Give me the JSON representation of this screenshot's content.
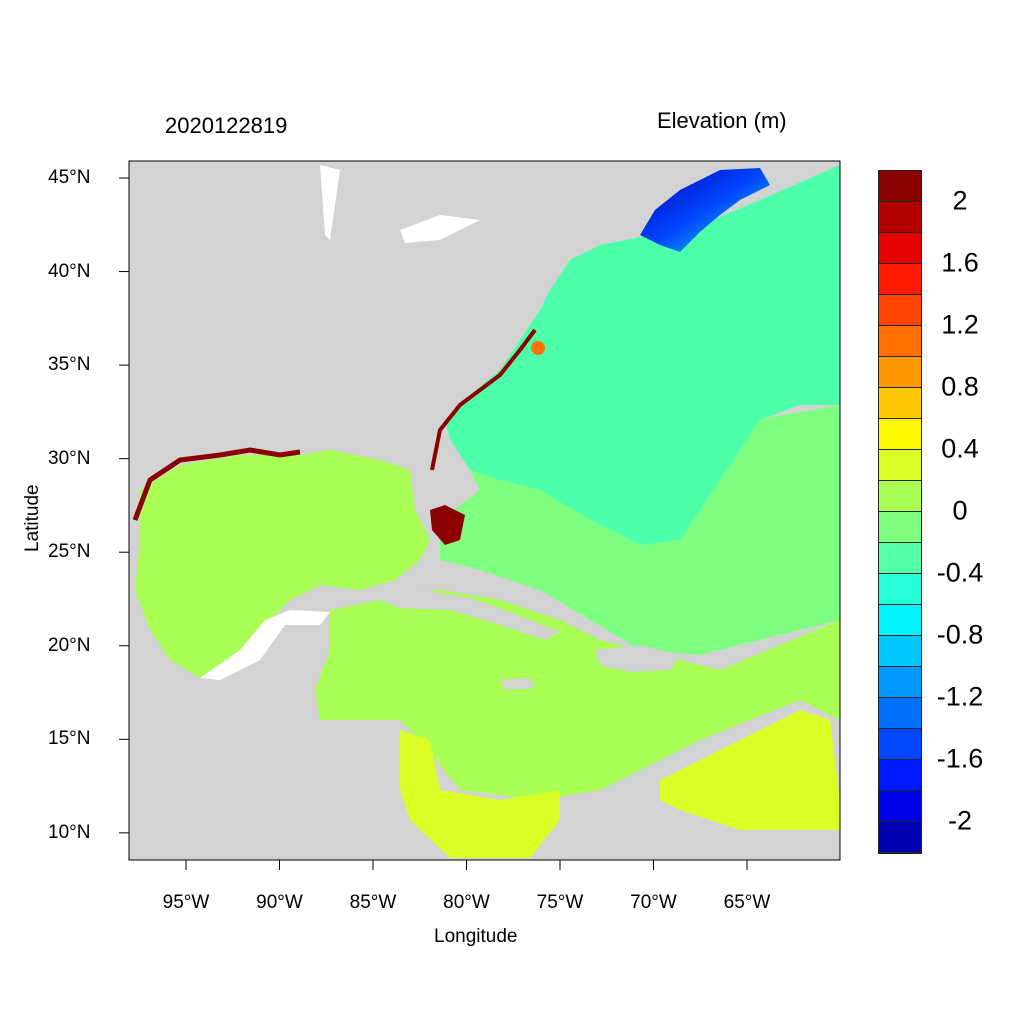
{
  "title_left": "2020122819",
  "title_right": "Elevation (m)",
  "xlabel": "Longitude",
  "ylabel": "Latitude",
  "x_ticks": [
    "95°W",
    "90°W",
    "85°W",
    "80°W",
    "75°W",
    "70°W",
    "65°W"
  ],
  "y_ticks": [
    "45°N",
    "40°N",
    "35°N",
    "30°N",
    "25°N",
    "20°N",
    "15°N",
    "10°N"
  ],
  "extent": {
    "lon": [
      -98.0,
      -60.1
    ],
    "lat": [
      8.6,
      45.9
    ]
  },
  "colorbar": {
    "labels": [
      "2",
      "1.6",
      "1.2",
      "0.8",
      "0.4",
      "0",
      "-0.4",
      "-0.8",
      "-1.2",
      "-1.6",
      "-2"
    ],
    "colors": [
      "#8b0000",
      "#b30000",
      "#e60000",
      "#ff1a00",
      "#ff4500",
      "#ff7000",
      "#ff9900",
      "#ffc800",
      "#fff700",
      "#d9ff26",
      "#aaff55",
      "#7fff80",
      "#55ffaa",
      "#26ffd9",
      "#00f7ff",
      "#00c8ff",
      "#0099ff",
      "#0070ff",
      "#0045ff",
      "#001aff",
      "#0000e6",
      "#0000b3"
    ]
  },
  "colors": {
    "land": "#d3d3d3",
    "lakes": "#ffffff"
  }
}
